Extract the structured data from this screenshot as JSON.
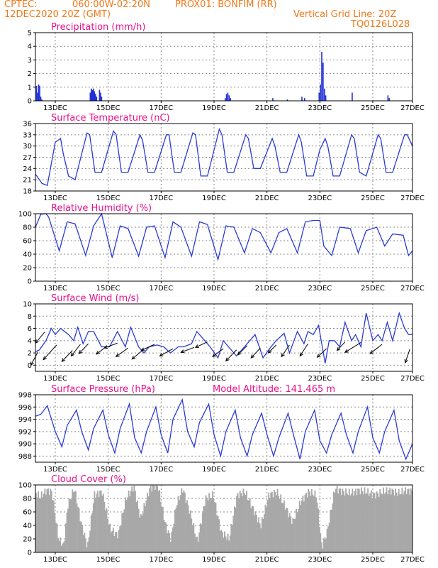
{
  "header": {
    "org": "CPTEC:",
    "coords": "060:00W-02:20N",
    "location": "PROX01: BONFIM (RR)",
    "datetime": "12DEC2020 20Z (GMT)",
    "grid_note": "Vertical Grid Line: 20Z",
    "code": "TQ0126L028"
  },
  "colors": {
    "header": "#f07818",
    "title": "#e8108a",
    "line": "#2a3ad8",
    "bar": "#1f2fd6",
    "cloud": "#a8a8a8",
    "arrow": "#000000"
  },
  "chart_data": [
    {
      "id": "precip",
      "type": "bar",
      "title": "Precipitation (mm/h)",
      "ylim": [
        0,
        5
      ],
      "yticks": [
        0,
        1,
        2,
        3,
        4,
        5
      ],
      "xlim": [
        0,
        14.25
      ],
      "xticks": [
        "13DEC",
        "15DEC",
        "17DEC",
        "19DEC",
        "21DEC",
        "23DEC",
        "25DEC",
        "27DEC"
      ],
      "xtick_pos": [
        0.75,
        2.75,
        4.75,
        6.75,
        8.75,
        10.75,
        12.75,
        14.25
      ],
      "grid": true,
      "bars": [
        [
          0.02,
          1.1
        ],
        [
          0.06,
          0.6
        ],
        [
          0.1,
          1.2
        ],
        [
          0.14,
          1.1
        ],
        [
          0.18,
          0.3
        ],
        [
          0.22,
          0.1
        ],
        [
          2.05,
          0.6
        ],
        [
          2.09,
          0.9
        ],
        [
          2.13,
          0.8
        ],
        [
          2.17,
          0.9
        ],
        [
          2.21,
          0.7
        ],
        [
          2.25,
          0.5
        ],
        [
          2.29,
          0.3
        ],
        [
          2.4,
          0.8
        ],
        [
          2.44,
          0.6
        ],
        [
          2.48,
          0.3
        ],
        [
          7.15,
          0.2
        ],
        [
          7.2,
          0.5
        ],
        [
          7.25,
          0.6
        ],
        [
          7.3,
          0.4
        ],
        [
          7.35,
          0.2
        ],
        [
          8.95,
          0.2
        ],
        [
          9.5,
          0.1
        ],
        [
          10.05,
          0.3
        ],
        [
          10.15,
          0.2
        ],
        [
          10.7,
          0.6
        ],
        [
          10.75,
          1.2
        ],
        [
          10.8,
          3.6
        ],
        [
          10.85,
          2.8
        ],
        [
          10.9,
          0.9
        ],
        [
          10.95,
          0.4
        ],
        [
          11.95,
          0.6
        ],
        [
          13.3,
          0.4
        ],
        [
          13.35,
          0.2
        ]
      ]
    },
    {
      "id": "temp",
      "type": "line",
      "title": "Surface Temperature (nC)",
      "ylim": [
        18,
        36
      ],
      "yticks": [
        18,
        21,
        24,
        27,
        30,
        33,
        36
      ],
      "xlim": [
        0,
        14.25
      ],
      "xticks": [
        "13DEC",
        "15DEC",
        "17DEC",
        "19DEC",
        "21DEC",
        "23DEC",
        "25DEC",
        "27DEC"
      ],
      "xtick_pos": [
        0.75,
        2.75,
        4.75,
        6.75,
        8.75,
        10.75,
        12.75,
        14.25
      ],
      "grid": true,
      "series": [
        {
          "t": [
            0,
            0.25,
            0.45,
            0.75,
            0.95,
            1.05,
            1.25,
            1.5,
            1.95,
            2.05,
            2.25,
            2.5,
            2.95,
            3.05,
            3.25,
            3.5,
            3.95,
            4.05,
            4.25,
            4.5,
            4.95,
            5.05,
            5.25,
            5.5,
            5.95,
            6.05,
            6.25,
            6.5,
            6.95,
            7.05,
            7.25,
            7.5,
            7.95,
            8.05,
            8.25,
            8.5,
            8.95,
            9.05,
            9.25,
            9.5,
            9.95,
            10.05,
            10.25,
            10.5,
            10.75,
            10.95,
            11.05,
            11.25,
            11.5,
            11.95,
            12.05,
            12.25,
            12.5,
            12.95,
            13.05,
            13.25,
            13.5,
            13.95,
            14.05,
            14.25
          ],
          "values": [
            22.5,
            20,
            19.5,
            31,
            32,
            28,
            22,
            21,
            33.5,
            33,
            23,
            23,
            34,
            33,
            23,
            23,
            33,
            31.5,
            23,
            23,
            33,
            33,
            23,
            23,
            33.5,
            33,
            22,
            22,
            34.5,
            33,
            23,
            23,
            33,
            32,
            24,
            24,
            32,
            30,
            23,
            23,
            33,
            31,
            22,
            22,
            29,
            32,
            30,
            22,
            22,
            33,
            32,
            23,
            22,
            33,
            32,
            23,
            23,
            33,
            33,
            30
          ]
        }
      ]
    },
    {
      "id": "rh",
      "type": "line",
      "title": "Relative Humidity (%)",
      "ylim": [
        0,
        100
      ],
      "yticks": [
        0,
        20,
        40,
        60,
        80,
        100
      ],
      "xlim": [
        0,
        14.25
      ],
      "xticks": [
        "13DEC",
        "15DEC",
        "17DEC",
        "19DEC",
        "21DEC",
        "23DEC",
        "25DEC",
        "27DEC"
      ],
      "xtick_pos": [
        0.75,
        2.75,
        4.75,
        6.75,
        8.75,
        10.75,
        12.75,
        14.25
      ],
      "grid": true,
      "series": [
        {
          "t": [
            0,
            0.2,
            0.4,
            0.5,
            0.9,
            1.2,
            1.5,
            1.9,
            2.2,
            2.5,
            2.9,
            3.2,
            3.5,
            3.9,
            4.2,
            4.5,
            4.9,
            5.2,
            5.5,
            5.9,
            6.2,
            6.5,
            6.9,
            7.2,
            7.5,
            7.9,
            8.2,
            8.5,
            8.9,
            9.2,
            9.5,
            9.9,
            10.2,
            10.5,
            10.75,
            10.9,
            11.2,
            11.5,
            11.9,
            12.2,
            12.5,
            12.9,
            13.2,
            13.5,
            13.9,
            14.1,
            14.25
          ],
          "values": [
            80,
            99,
            100,
            95,
            45,
            88,
            85,
            38,
            82,
            100,
            35,
            82,
            78,
            37,
            80,
            82,
            35,
            88,
            80,
            37,
            88,
            84,
            32,
            82,
            80,
            42,
            78,
            72,
            42,
            72,
            78,
            42,
            88,
            90,
            90,
            52,
            38,
            80,
            78,
            42,
            75,
            80,
            52,
            70,
            68,
            38,
            45
          ]
        }
      ]
    },
    {
      "id": "wind",
      "type": "line",
      "title": "Surface Wind (m/s)",
      "ylim": [
        -1,
        10
      ],
      "yticks": [
        0,
        2,
        4,
        6,
        8,
        10
      ],
      "xlim": [
        0,
        14.25
      ],
      "xticks": [
        "13DEC",
        "15DEC",
        "17DEC",
        "19DEC",
        "21DEC",
        "23DEC",
        "25DEC",
        "27DEC"
      ],
      "xtick_pos": [
        0.75,
        2.75,
        4.75,
        6.75,
        8.75,
        10.75,
        12.75,
        14.25
      ],
      "grid": true,
      "series": [
        {
          "t": [
            0,
            0.15,
            0.4,
            0.6,
            0.75,
            0.95,
            1.25,
            1.45,
            1.6,
            1.8,
            2.0,
            2.2,
            2.5,
            2.8,
            3.1,
            3.4,
            3.6,
            3.9,
            4.1,
            4.3,
            4.6,
            4.85,
            5.1,
            5.4,
            5.6,
            5.9,
            6.1,
            6.4,
            6.6,
            6.9,
            7.1,
            7.3,
            7.6,
            7.9,
            8.1,
            8.3,
            8.6,
            8.9,
            9.1,
            9.4,
            9.6,
            9.9,
            10.15,
            10.3,
            10.5,
            10.7,
            10.8,
            10.95,
            11.1,
            11.3,
            11.5,
            11.7,
            11.95,
            12.1,
            12.3,
            12.5,
            12.75,
            12.95,
            13.1,
            13.3,
            13.5,
            13.75,
            13.95,
            14.1,
            14.25
          ],
          "values": [
            2.2,
            2.5,
            4,
            6,
            5,
            6,
            5,
            4,
            6.2,
            3.5,
            5.5,
            5.5,
            3,
            3,
            5.5,
            3,
            6.2,
            3,
            2,
            3,
            3.3,
            3,
            2,
            3,
            3,
            3.5,
            5.5,
            4,
            3,
            1.2,
            4,
            3,
            1.5,
            3,
            4,
            5,
            1.2,
            3,
            4,
            5.2,
            2,
            5.5,
            3.5,
            5.5,
            5,
            6.5,
            4,
            0.3,
            4,
            4,
            3,
            7,
            4,
            5,
            3,
            8.5,
            4,
            5,
            4,
            7,
            4,
            8.5,
            6,
            5,
            5
          ]
        }
      ],
      "arrows": [
        [
          0.1,
          2.2,
          0.55,
          2.2
        ],
        [
          0.35,
          5.4,
          0.7,
          1.8
        ],
        [
          0.8,
          3.3,
          1.0,
          2.4
        ],
        [
          1.4,
          2.4,
          0.8,
          1.8
        ],
        [
          1.7,
          3.4,
          0.7,
          1.9
        ],
        [
          2.0,
          3.5,
          0.7,
          1.6
        ],
        [
          2.7,
          3.1,
          0.8,
          1.3
        ],
        [
          3.1,
          3.6,
          1.0,
          0.8
        ],
        [
          3.5,
          2.8,
          0.9,
          1.4
        ],
        [
          4.1,
          2.6,
          0.9,
          1.6
        ],
        [
          4.5,
          3.4,
          1.0,
          1.0
        ],
        [
          5.2,
          2.7,
          1.0,
          1.2
        ],
        [
          6.0,
          2.9,
          1.0,
          0.8
        ],
        [
          6.5,
          3.8,
          0.9,
          0.9
        ],
        [
          7.1,
          2.7,
          0.8,
          1.3
        ],
        [
          7.6,
          2.5,
          0.8,
          1.8
        ],
        [
          8.0,
          3.2,
          0.7,
          1.5
        ],
        [
          8.5,
          2.8,
          0.7,
          1.6
        ],
        [
          9.1,
          3.3,
          0.6,
          1.3
        ],
        [
          9.6,
          3.3,
          0.6,
          1.9
        ],
        [
          10.3,
          3.5,
          0.6,
          2.0
        ],
        [
          11.0,
          2.7,
          0.7,
          1.4
        ],
        [
          11.7,
          3.8,
          0.6,
          1.4
        ],
        [
          12.3,
          3.7,
          1.2,
          1.6
        ],
        [
          13.1,
          3.4,
          0.9,
          1.5
        ],
        [
          14.15,
          2.6,
          0.35,
          2.2
        ]
      ]
    },
    {
      "id": "pressure",
      "type": "line",
      "title": "Surface Pressure (hPa)",
      "note": "Model Altitude: 141.465 m",
      "ylim": [
        987,
        998
      ],
      "yticks": [
        988,
        990,
        992,
        994,
        996,
        998
      ],
      "xlim": [
        0,
        14.25
      ],
      "xticks": [
        "13DEC",
        "15DEC",
        "17DEC",
        "19DEC",
        "21DEC",
        "23DEC",
        "25DEC",
        "27DEC"
      ],
      "xtick_pos": [
        0.75,
        2.75,
        4.75,
        6.75,
        8.75,
        10.75,
        12.75,
        14.25
      ],
      "grid": true,
      "series": [
        {
          "t": [
            0,
            0.2,
            0.45,
            0.75,
            1.0,
            1.2,
            1.55,
            1.75,
            2.0,
            2.2,
            2.55,
            2.75,
            3.0,
            3.2,
            3.55,
            3.75,
            4.0,
            4.2,
            4.55,
            4.75,
            5.0,
            5.2,
            5.55,
            5.75,
            6.0,
            6.2,
            6.55,
            6.75,
            7.0,
            7.2,
            7.55,
            7.75,
            8.0,
            8.2,
            8.55,
            8.75,
            9.0,
            9.2,
            9.55,
            9.75,
            10.0,
            10.2,
            10.55,
            10.75,
            11.0,
            11.2,
            11.55,
            11.75,
            12.0,
            12.2,
            12.55,
            12.75,
            13.0,
            13.2,
            13.55,
            13.75,
            14.0,
            14.25
          ],
          "values": [
            994.5,
            994.8,
            996.2,
            992,
            989.5,
            993,
            995.5,
            992,
            989,
            992.5,
            995.5,
            991.5,
            988.5,
            992.5,
            996.5,
            991,
            988.5,
            992,
            996,
            991.5,
            988.5,
            994,
            997.2,
            992,
            989.5,
            993.5,
            996.5,
            991.5,
            988,
            992,
            995.5,
            991,
            988,
            991.5,
            995,
            991.5,
            988,
            991,
            995,
            991.5,
            987.5,
            992,
            995.5,
            990.5,
            988.5,
            991.5,
            995,
            991.5,
            988.5,
            992,
            996,
            991,
            988.5,
            992,
            995.5,
            990.5,
            987.5,
            990
          ]
        }
      ]
    },
    {
      "id": "cloud",
      "type": "bar",
      "title": "Cloud Cover (%)",
      "ylim": [
        0,
        100
      ],
      "yticks": [
        0,
        20,
        40,
        60,
        80,
        100
      ],
      "xlim": [
        0,
        14.25
      ],
      "xticks": [
        "13DEC",
        "15DEC",
        "17DEC",
        "19DEC",
        "21DEC",
        "23DEC",
        "25DEC",
        "27DEC"
      ],
      "xtick_pos": [
        0.75,
        2.75,
        4.75,
        6.75,
        8.75,
        10.75,
        12.75,
        14.25
      ],
      "grid": true,
      "profile_t": [
        0,
        0.15,
        0.4,
        0.6,
        0.85,
        1.05,
        1.2,
        1.45,
        1.7,
        1.95,
        2.2,
        2.5,
        2.8,
        3.1,
        3.4,
        3.7,
        3.95,
        4.3,
        4.6,
        4.9,
        5.1,
        5.3,
        5.55,
        5.85,
        6.1,
        6.4,
        6.7,
        7.0,
        7.3,
        7.6,
        7.9,
        8.2,
        8.5,
        8.8,
        9.1,
        9.4,
        9.7,
        10.0,
        10.3,
        10.6,
        10.8,
        11.0,
        11.3,
        11.6,
        11.9,
        12.2,
        12.5,
        12.8,
        13.1,
        13.4,
        13.7,
        14.0,
        14.25
      ],
      "profile_values": [
        88,
        82,
        92,
        90,
        20,
        10,
        70,
        95,
        45,
        8,
        85,
        90,
        35,
        25,
        80,
        98,
        50,
        95,
        100,
        40,
        20,
        70,
        95,
        55,
        15,
        80,
        85,
        30,
        20,
        85,
        90,
        65,
        40,
        85,
        90,
        70,
        45,
        75,
        90,
        85,
        8,
        30,
        95,
        90,
        88,
        92,
        90,
        85,
        90,
        92,
        88,
        92,
        90
      ]
    }
  ]
}
